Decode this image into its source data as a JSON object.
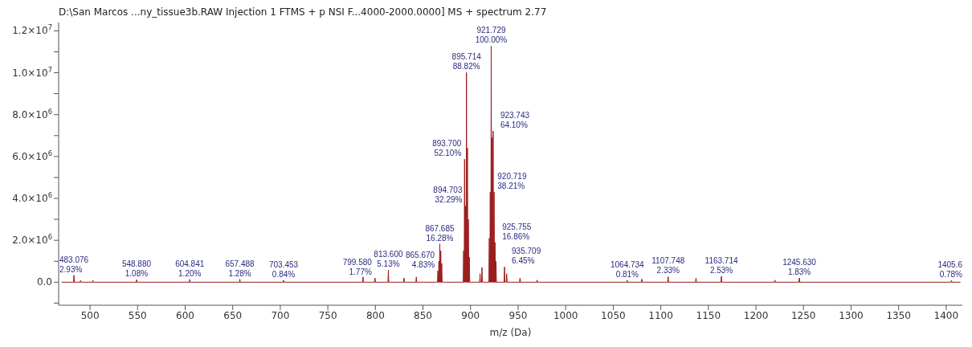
{
  "chart_data": {
    "type": "area",
    "title": "D:\\San Marcos ...ny_tissue3b.RAW Injection 1 FTMS + p NSI F...4000-2000.0000] MS + spectrum 2.77",
    "xlabel": "m/z (Da)",
    "xlim": [
      467,
      1417
    ],
    "xticks": [
      500,
      550,
      600,
      650,
      700,
      750,
      800,
      850,
      900,
      950,
      1000,
      1050,
      1100,
      1150,
      1200,
      1250,
      1300,
      1350,
      1400
    ],
    "ylim": [
      -1100000,
      12400000
    ],
    "yticks": [
      {
        "value": -1000000,
        "label": null
      },
      {
        "value": 0,
        "label": "0.0"
      },
      {
        "value": 1000000,
        "label": null
      },
      {
        "value": 2000000,
        "label": "2.0×10$^{6}$"
      },
      {
        "value": 3000000,
        "label": null
      },
      {
        "value": 4000000,
        "label": "4.0×10$^{6}$"
      },
      {
        "value": 5000000,
        "label": null
      },
      {
        "value": 6000000,
        "label": "6.0×10$^{6}$"
      },
      {
        "value": 7000000,
        "label": null
      },
      {
        "value": 8000000,
        "label": "8.0×10$^{6}$"
      },
      {
        "value": 9000000,
        "label": null
      },
      {
        "value": 10000000,
        "label": "1.0×10$^{7}$"
      },
      {
        "value": 11000000,
        "label": null
      },
      {
        "value": 12000000,
        "label": "1.2×10$^{7}$"
      }
    ],
    "series": [
      {
        "color": "#9b1c1c",
        "x": [
          470,
          482.676,
          483.076,
          483.476,
          489.6,
          490,
          490.4,
          502.6,
          503,
          503.4,
          548.48,
          548.88,
          549.28,
          604.441,
          604.841,
          605.241,
          657.088,
          657.488,
          657.888,
          703.053,
          703.453,
          703.853,
          786.6,
          787,
          787.4,
          799.18,
          799.58,
          799.98,
          813.2,
          813.6,
          814,
          829.6,
          830,
          830.4,
          842.6,
          843,
          843.4,
          865.27,
          865.67,
          866.07,
          866.3,
          866.7,
          867.1,
          867.285,
          867.685,
          868.085,
          868.3,
          868.7,
          869.1,
          869.3,
          869.7,
          870.1,
          892.3,
          892.7,
          893.1,
          893.3,
          893.7,
          894.1,
          894.303,
          894.703,
          895.103,
          895.314,
          895.714,
          896.114,
          896.32,
          896.72,
          897.12,
          897.32,
          897.72,
          898.12,
          898.33,
          898.73,
          899.13,
          909.6,
          910,
          910.4,
          911.6,
          912,
          912.4,
          919.3,
          919.7,
          920.1,
          920.319,
          920.719,
          921.119,
          921.329,
          921.729,
          922.129,
          922.33,
          922.73,
          923.13,
          923.343,
          923.743,
          924.143,
          924.35,
          924.75,
          925.15,
          925.355,
          925.755,
          926.155,
          926.36,
          926.76,
          927.16,
          935.309,
          935.709,
          936.109,
          937.6,
          938,
          938.4,
          951.6,
          952,
          952.4,
          969.6,
          970,
          970.4,
          1064.334,
          1064.734,
          1065.134,
          1079.6,
          1080,
          1080.4,
          1107.348,
          1107.748,
          1108.148,
          1136.6,
          1137,
          1137.4,
          1163.314,
          1163.714,
          1164.114,
          1219.6,
          1220,
          1220.4,
          1245.23,
          1245.63,
          1246.03,
          1405.2,
          1405.6,
          1406,
          1415
        ],
        "values": [
          0,
          0,
          330000,
          0,
          0,
          80000,
          0,
          0,
          80000,
          0,
          0,
          122000,
          0,
          0,
          135000,
          0,
          0,
          144000,
          0,
          0,
          95000,
          0,
          0,
          250000,
          0,
          0,
          199000,
          0,
          0,
          578000,
          0,
          0,
          200000,
          0,
          0,
          250000,
          0,
          0,
          544000,
          0,
          0,
          1000000,
          0,
          0,
          1830000,
          0,
          0,
          1500000,
          0,
          0,
          900000,
          0,
          0,
          1500000,
          0,
          0,
          5870000,
          0,
          0,
          3640000,
          0,
          0,
          10010000,
          0,
          0,
          6400000,
          0,
          0,
          3000000,
          0,
          0,
          1200000,
          0,
          0,
          400000,
          0,
          0,
          700000,
          0,
          0,
          2100000,
          0,
          0,
          4310000,
          0,
          0,
          11270000,
          0,
          0,
          6900000,
          0,
          0,
          7220000,
          0,
          0,
          4300000,
          0,
          0,
          1900000,
          0,
          0,
          1000000,
          0,
          0,
          727000,
          0,
          0,
          400000,
          0,
          0,
          200000,
          0,
          0,
          100000,
          0,
          0,
          91000,
          0,
          0,
          150000,
          0,
          0,
          263000,
          0,
          0,
          200000,
          0,
          0,
          285000,
          0,
          0,
          100000,
          0,
          0,
          206000,
          0,
          0,
          88000,
          0,
          0
        ]
      }
    ],
    "annotations": [
      {
        "text": "483.076\n2.93%",
        "x": 483.076,
        "y": 330000
      },
      {
        "text": "548.880\n1.08%",
        "x": 548.88,
        "y": 122000
      },
      {
        "text": "604.841\n1.20%",
        "x": 604.841,
        "y": 135000
      },
      {
        "text": "657.488\n1.28%",
        "x": 657.488,
        "y": 144000
      },
      {
        "text": "703.453\n0.84%",
        "x": 703.453,
        "y": 95000
      },
      {
        "text": "799.580\n1.77%",
        "x": 799.58,
        "y": 199000
      },
      {
        "text": "813.600\n5.13%",
        "x": 813.6,
        "y": 578000
      },
      {
        "text": "865.670\n4.83%",
        "x": 865.67,
        "y": 544000
      },
      {
        "text": "867.685\n16.28%",
        "x": 867.685,
        "y": 1830000
      },
      {
        "text": "893.700\n52.10%",
        "x": 893.7,
        "y": 5870000
      },
      {
        "text": "894.703\n32.29%",
        "x": 894.703,
        "y": 3640000
      },
      {
        "text": "895.714\n88.82%",
        "x": 895.714,
        "y": 10010000
      },
      {
        "text": "920.719\n38.21%",
        "x": 920.719,
        "y": 4310000
      },
      {
        "text": "921.729\n100.00%",
        "x": 921.729,
        "y": 11270000
      },
      {
        "text": "923.743\n64.10%",
        "x": 923.743,
        "y": 7220000
      },
      {
        "text": "925.755\n16.86%",
        "x": 925.755,
        "y": 1900000
      },
      {
        "text": "935.709\n6.45%",
        "x": 935.709,
        "y": 727000
      },
      {
        "text": "1064.734\n0.81%",
        "x": 1064.734,
        "y": 91000
      },
      {
        "text": "1107.748\n2.33%",
        "x": 1107.748,
        "y": 263000
      },
      {
        "text": "1163.714\n2.53%",
        "x": 1163.714,
        "y": 285000
      },
      {
        "text": "1245.630\n1.83%",
        "x": 1245.63,
        "y": 206000
      },
      {
        "text": "1405.6\n0.78%",
        "x": 1405.6,
        "y": 88000
      }
    ]
  }
}
